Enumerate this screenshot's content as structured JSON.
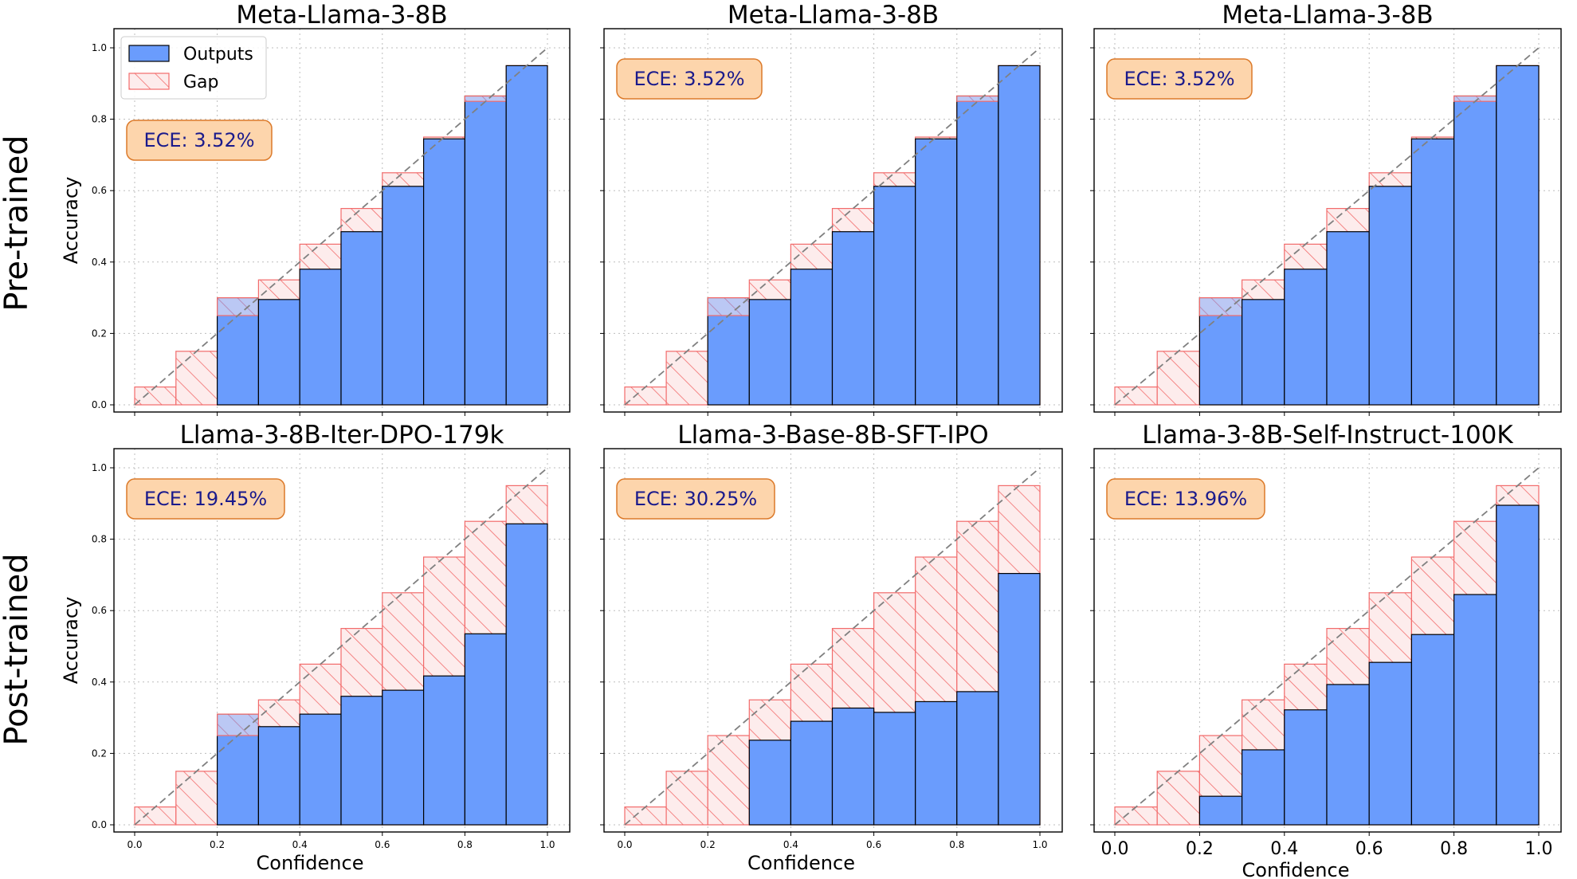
{
  "figure": {
    "row_labels": [
      "Pre-trained",
      "Post-trained"
    ],
    "legend": {
      "outputs_label": "Outputs",
      "gap_label": "Gap",
      "placement": "upper-left (first panel only)"
    },
    "colors": {
      "outputs_fill": "#6a9cfd",
      "outputs_edge": "#000000",
      "gap_fill": "#fdecec",
      "gap_hatch": "#f26b6b",
      "ece_box_fill": "#fdd5ac",
      "ece_box_edge": "#dc7a2a",
      "ece_text": "#1a1a8c",
      "diagonal": "#808080"
    }
  },
  "chart_data": [
    {
      "type": "bar",
      "title": "Meta-Llama-3-8B",
      "ylabel": "Accuracy",
      "xlabel": "",
      "xlim": [
        0,
        1
      ],
      "ylim": [
        0,
        1
      ],
      "grid": true,
      "ece_label": "ECE: 3.52%",
      "bin_edges": [
        0,
        0.1,
        0.2,
        0.3,
        0.4,
        0.5,
        0.6,
        0.7,
        0.8,
        0.9,
        1.0
      ],
      "expected": [
        0.05,
        0.15,
        0.25,
        0.35,
        0.45,
        0.55,
        0.65,
        0.75,
        0.85,
        0.95
      ],
      "outputs": [
        0,
        0,
        0.3,
        0.295,
        0.38,
        0.485,
        0.612,
        0.745,
        0.865,
        0.95
      ],
      "xticks": [
        "",
        "",
        "",
        "",
        "",
        ""
      ],
      "yticks": [
        "0.0",
        "0.2",
        "0.4",
        "0.6",
        "0.8",
        "1.0"
      ]
    },
    {
      "type": "bar",
      "title": "Meta-Llama-3-8B",
      "ylabel": "",
      "xlabel": "",
      "xlim": [
        0,
        1
      ],
      "ylim": [
        0,
        1
      ],
      "grid": true,
      "ece_label": "ECE: 3.52%",
      "bin_edges": [
        0,
        0.1,
        0.2,
        0.3,
        0.4,
        0.5,
        0.6,
        0.7,
        0.8,
        0.9,
        1.0
      ],
      "expected": [
        0.05,
        0.15,
        0.25,
        0.35,
        0.45,
        0.55,
        0.65,
        0.75,
        0.85,
        0.95
      ],
      "outputs": [
        0,
        0,
        0.3,
        0.295,
        0.38,
        0.485,
        0.612,
        0.745,
        0.865,
        0.95
      ],
      "xticks": [
        "",
        "",
        "",
        "",
        "",
        ""
      ],
      "yticks": [
        "",
        "",
        "",
        "",
        "",
        ""
      ]
    },
    {
      "type": "bar",
      "title": "Meta-Llama-3-8B",
      "ylabel": "",
      "xlabel": "",
      "xlim": [
        0,
        1
      ],
      "ylim": [
        0,
        1
      ],
      "grid": true,
      "ece_label": "ECE: 3.52%",
      "bin_edges": [
        0,
        0.1,
        0.2,
        0.3,
        0.4,
        0.5,
        0.6,
        0.7,
        0.8,
        0.9,
        1.0
      ],
      "expected": [
        0.05,
        0.15,
        0.25,
        0.35,
        0.45,
        0.55,
        0.65,
        0.75,
        0.85,
        0.95
      ],
      "outputs": [
        0,
        0,
        0.3,
        0.295,
        0.38,
        0.485,
        0.612,
        0.745,
        0.865,
        0.95
      ],
      "xticks": [
        "",
        "",
        "",
        "",
        "",
        ""
      ],
      "yticks": [
        "",
        "",
        "",
        "",
        "",
        ""
      ]
    },
    {
      "type": "bar",
      "title": "Llama-3-8B-Iter-DPO-179k",
      "ylabel": "Accuracy",
      "xlabel": "Confidence",
      "xlim": [
        0,
        1
      ],
      "ylim": [
        0,
        1
      ],
      "grid": true,
      "ece_label": "ECE: 19.45%",
      "bin_edges": [
        0,
        0.1,
        0.2,
        0.3,
        0.4,
        0.5,
        0.6,
        0.7,
        0.8,
        0.9,
        1.0
      ],
      "expected": [
        0.05,
        0.15,
        0.25,
        0.35,
        0.45,
        0.55,
        0.65,
        0.75,
        0.85,
        0.95
      ],
      "outputs": [
        0,
        0,
        0.31,
        0.275,
        0.31,
        0.36,
        0.377,
        0.417,
        0.535,
        0.843
      ],
      "xticks": [
        "0.0",
        "0.2",
        "0.4",
        "0.6",
        "0.8",
        "1.0"
      ],
      "yticks": [
        "0.0",
        "0.2",
        "0.4",
        "0.6",
        "0.8",
        "1.0"
      ]
    },
    {
      "type": "bar",
      "title": "Llama-3-Base-8B-SFT-IPO",
      "ylabel": "",
      "xlabel": "Confidence",
      "xlim": [
        0,
        1
      ],
      "ylim": [
        0,
        1
      ],
      "grid": true,
      "ece_label": "ECE: 30.25%",
      "bin_edges": [
        0,
        0.1,
        0.2,
        0.3,
        0.4,
        0.5,
        0.6,
        0.7,
        0.8,
        0.9,
        1.0
      ],
      "expected": [
        0.05,
        0.15,
        0.25,
        0.35,
        0.45,
        0.55,
        0.65,
        0.75,
        0.85,
        0.95
      ],
      "outputs": [
        0,
        0,
        0,
        0.237,
        0.29,
        0.327,
        0.315,
        0.345,
        0.373,
        0.704
      ],
      "xticks": [
        "0.0",
        "0.2",
        "0.4",
        "0.6",
        "0.8",
        "1.0"
      ],
      "yticks": [
        "",
        "",
        "",
        "",
        "",
        ""
      ]
    },
    {
      "type": "bar",
      "title": "Llama-3-8B-Self-Instruct-100K",
      "ylabel": "",
      "xlabel": "Confidence",
      "xlim": [
        0,
        1
      ],
      "ylim": [
        0,
        1
      ],
      "grid": true,
      "ece_label": "ECE: 13.96%",
      "bin_edges": [
        0,
        0.1,
        0.2,
        0.3,
        0.4,
        0.5,
        0.6,
        0.7,
        0.8,
        0.9,
        1.0
      ],
      "expected": [
        0.05,
        0.15,
        0.25,
        0.35,
        0.45,
        0.55,
        0.65,
        0.75,
        0.85,
        0.95
      ],
      "outputs": [
        0,
        0,
        0.08,
        0.21,
        0.322,
        0.393,
        0.455,
        0.533,
        0.645,
        0.895
      ],
      "xticks": [
        "0.0",
        "0.2",
        "0.4",
        "0.6",
        "0.8",
        "1.0"
      ],
      "yticks": [
        "",
        "",
        "",
        "",
        "",
        ""
      ],
      "large_xticks": true
    }
  ]
}
